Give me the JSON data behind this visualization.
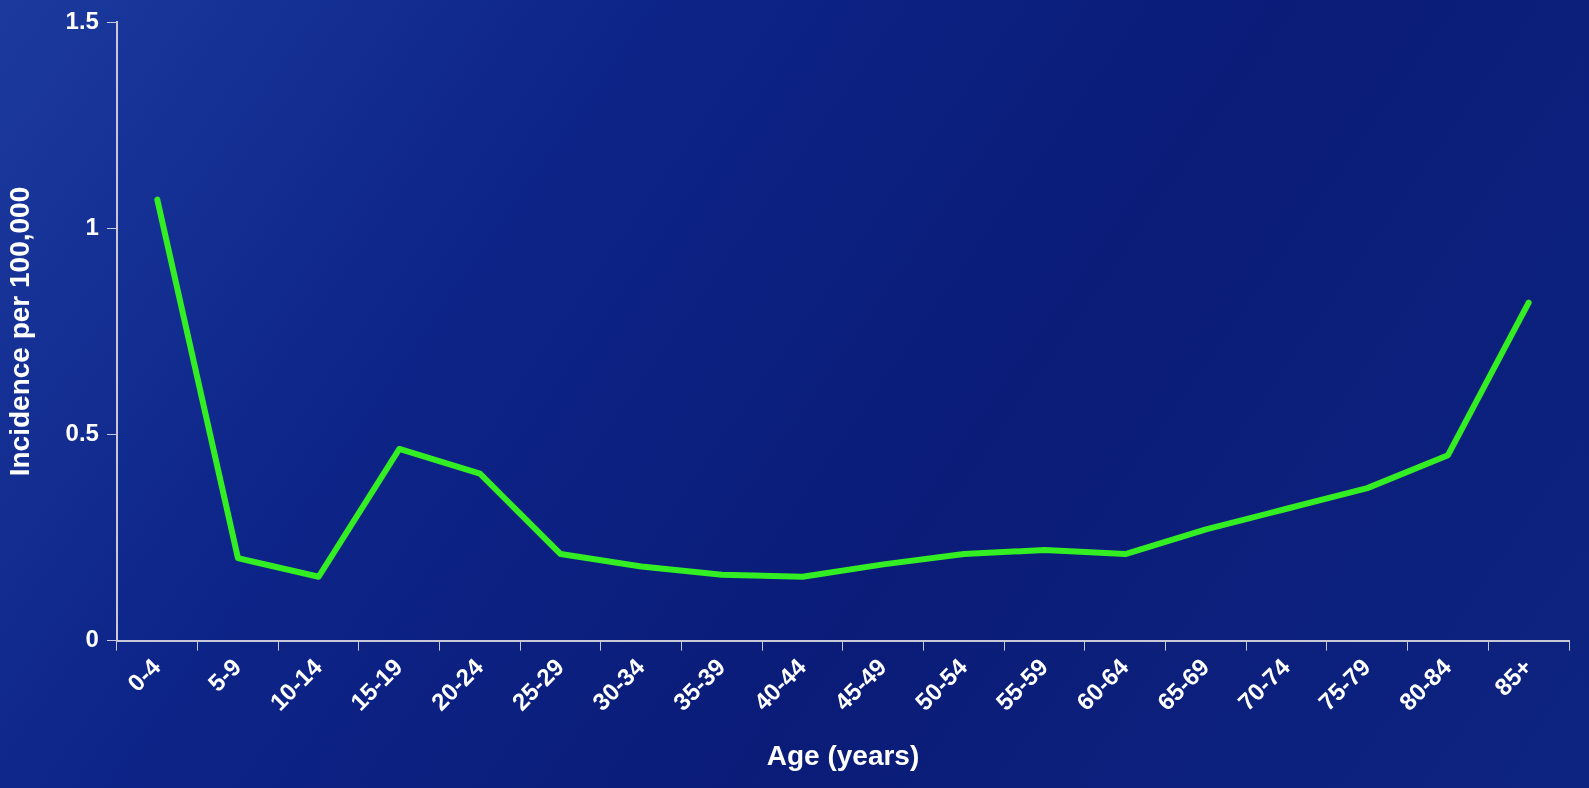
{
  "chart_data": {
    "type": "line",
    "xlabel": "Age (years)",
    "ylabel": "Incidence per 100,000",
    "categories": [
      "0-4",
      "5-9",
      "10-14",
      "15-19",
      "20-24",
      "25-29",
      "30-34",
      "35-39",
      "40-44",
      "45-49",
      "50-54",
      "55-59",
      "60-64",
      "65-69",
      "70-74",
      "75-79",
      "80-84",
      "85+"
    ],
    "series": [
      {
        "color": "#33ee22",
        "values": [
          1.07,
          0.2,
          0.155,
          0.465,
          0.405,
          0.21,
          0.18,
          0.16,
          0.155,
          0.185,
          0.21,
          0.22,
          0.21,
          0.27,
          0.32,
          0.37,
          0.45,
          0.82
        ]
      }
    ],
    "ylim": [
      0,
      1.5
    ],
    "yticks": [
      0,
      0.5,
      1,
      1.5
    ],
    "grid": false,
    "legend": false,
    "marker": "none",
    "line_style": "solid"
  }
}
